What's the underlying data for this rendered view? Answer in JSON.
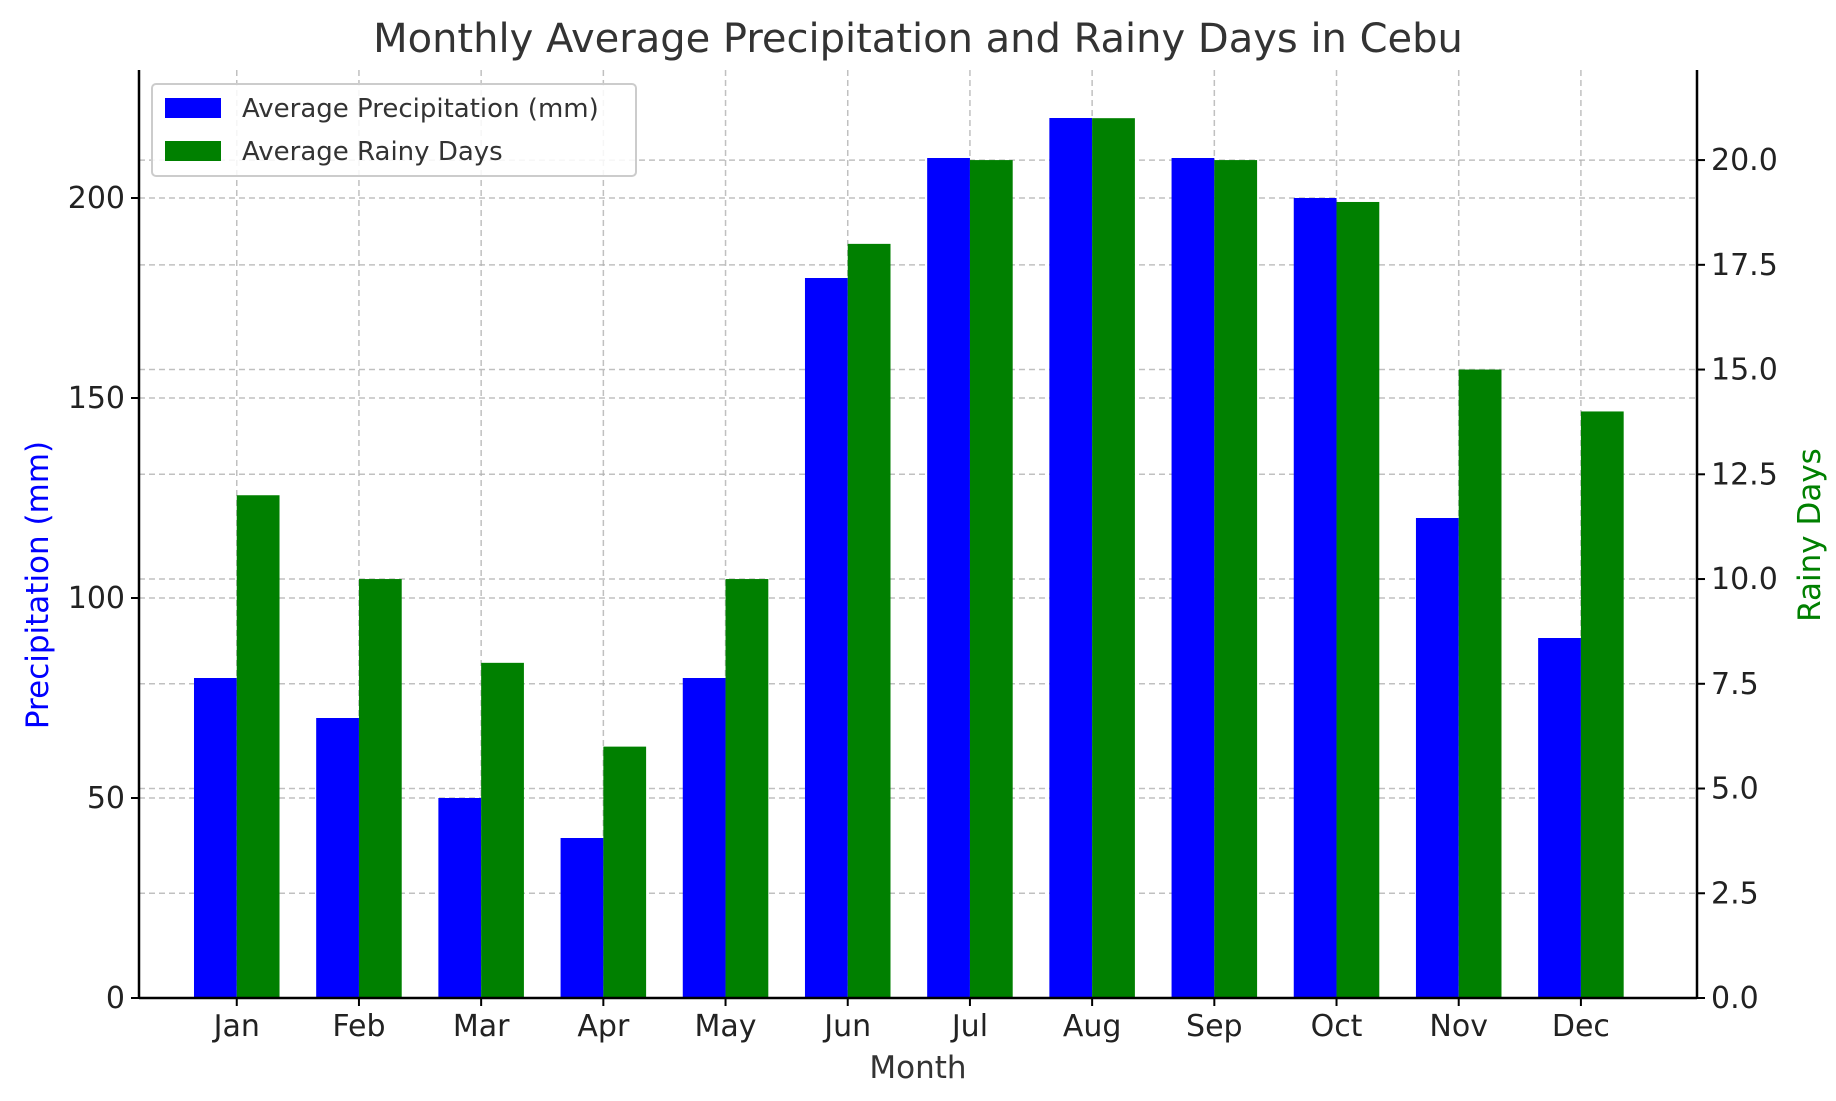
{
  "chart_data": {
    "type": "bar",
    "title": "Monthly Average Precipitation and Rainy Days in Cebu",
    "xlabel": "Month",
    "ylabel_left": "Precipitation (mm)",
    "ylabel_right": "Rainy Days",
    "categories": [
      "Jan",
      "Feb",
      "Mar",
      "Apr",
      "May",
      "Jun",
      "Jul",
      "Aug",
      "Sep",
      "Oct",
      "Nov",
      "Dec"
    ],
    "series": [
      {
        "name": "Average Precipitation (mm)",
        "axis": "left",
        "color": "#0000ff",
        "values": [
          80,
          70,
          50,
          40,
          80,
          180,
          210,
          220,
          210,
          200,
          120,
          90
        ]
      },
      {
        "name": "Average Rainy Days",
        "axis": "right",
        "color": "#008000",
        "values": [
          12,
          10,
          8,
          6,
          10,
          18,
          20,
          21,
          20,
          19,
          15,
          14
        ]
      }
    ],
    "ylim_left": [
      0,
      232
    ],
    "ylim_right": [
      0,
      22.15
    ],
    "yticks_left": [
      0,
      50,
      100,
      150,
      200
    ],
    "yticks_right": [
      "0.0",
      "2.5",
      "5.0",
      "7.5",
      "10.0",
      "12.5",
      "15.0",
      "17.5",
      "20.0"
    ],
    "grid": true,
    "legend_position": "top-left",
    "left_label_color": "#0000ff",
    "right_label_color": "#008000"
  }
}
